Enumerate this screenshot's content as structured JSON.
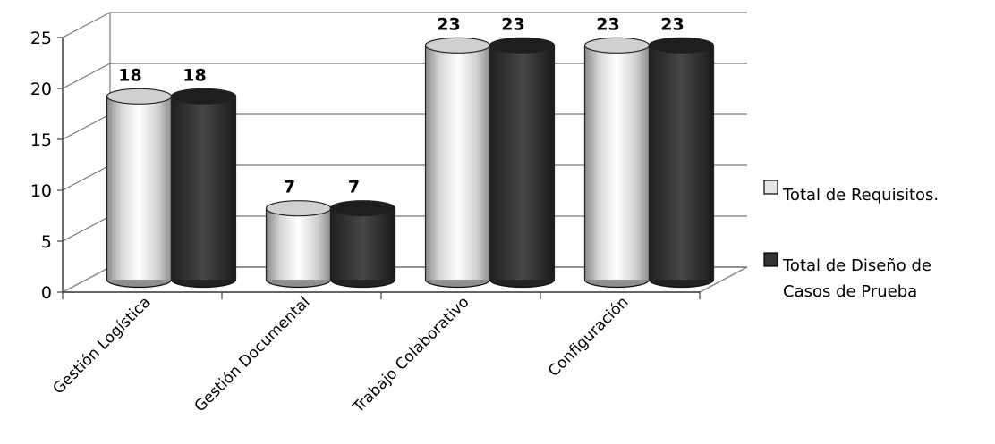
{
  "chart_data": {
    "type": "bar",
    "style": "3d-cylinder",
    "categories": [
      "Gestión Logística",
      "Gestión Documental",
      "Trabajo Colaborativo",
      "Configuración"
    ],
    "series": [
      {
        "name": "Total de Requisitos.",
        "values": [
          18,
          7,
          23,
          23
        ],
        "color": "#e6e6e6"
      },
      {
        "name": "Total de Diseño de Casos de Prueba",
        "values": [
          18,
          7,
          23,
          23
        ],
        "color": "#333333"
      }
    ],
    "yticks": [
      0,
      5,
      10,
      15,
      20,
      25
    ],
    "ylim": [
      0,
      25
    ],
    "grid": true,
    "legend_position": "right",
    "data_labels": true
  }
}
